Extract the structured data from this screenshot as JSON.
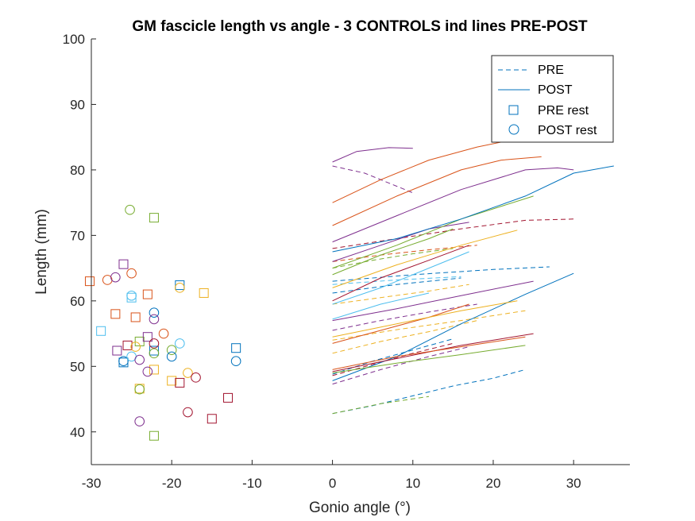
{
  "chart_data": {
    "type": "scatter",
    "title": "GM fascicle length vs angle - 3 CONTROLS ind lines PRE-POST",
    "xlabel": "Gonio angle (°)",
    "ylabel": "Length (mm)",
    "xlim": [
      -30,
      37
    ],
    "ylim": [
      35,
      100
    ],
    "xticks": [
      -30,
      -20,
      -10,
      0,
      10,
      20,
      30
    ],
    "yticks": [
      40,
      50,
      60,
      70,
      80,
      90,
      100
    ],
    "xtick_labels": [
      "-30",
      "-20",
      "-10",
      "0",
      "10",
      "20",
      "30"
    ],
    "ytick_labels": [
      "40",
      "50",
      "60",
      "70",
      "80",
      "90",
      "100"
    ],
    "grid": false,
    "legend_position": "top-right",
    "legend": [
      {
        "label": "PRE",
        "style": "dashed-line"
      },
      {
        "label": "POST",
        "style": "solid-line"
      },
      {
        "label": "PRE rest",
        "style": "square-marker"
      },
      {
        "label": "POST rest",
        "style": "circle-marker"
      }
    ],
    "colors": {
      "blue": "#0072BD",
      "orange": "#D95319",
      "yellow": "#EDB120",
      "purple": "#7E2F8E",
      "green": "#77AC30",
      "cyan": "#4DBEEE",
      "maroon": "#A2142F",
      "legend_marker": "#0072BD"
    },
    "series": [
      {
        "type": "pre",
        "color": "blue",
        "x": [
          0,
          5,
          10,
          15,
          20,
          24
        ],
        "y": [
          42.8,
          44,
          45.5,
          47,
          48.2,
          49.5
        ]
      },
      {
        "type": "pre",
        "color": "green",
        "x": [
          0,
          6,
          12
        ],
        "y": [
          42.8,
          44.3,
          45.4
        ]
      },
      {
        "type": "pre",
        "color": "purple",
        "x": [
          0,
          6,
          12,
          17
        ],
        "y": [
          47.3,
          49.5,
          51.5,
          53
        ]
      },
      {
        "type": "pre",
        "color": "maroon",
        "x": [
          0,
          5,
          10,
          15
        ],
        "y": [
          48.6,
          50.3,
          52,
          53.5
        ]
      },
      {
        "type": "pre",
        "color": "blue",
        "x": [
          0,
          5,
          10,
          15
        ],
        "y": [
          48.8,
          50.8,
          52.5,
          54.2
        ]
      },
      {
        "type": "pre",
        "color": "yellow",
        "x": [
          0,
          6,
          12,
          18
        ],
        "y": [
          52,
          53.8,
          55.3,
          57
        ]
      },
      {
        "type": "pre",
        "color": "yellow",
        "x": [
          0,
          8,
          16,
          24
        ],
        "y": [
          54,
          55.6,
          57,
          58.5
        ]
      },
      {
        "type": "pre",
        "color": "purple",
        "x": [
          0,
          6,
          12,
          18
        ],
        "y": [
          55.5,
          57,
          58.3,
          59.5
        ]
      },
      {
        "type": "pre",
        "color": "yellow",
        "x": [
          0,
          6,
          12,
          17
        ],
        "y": [
          59.5,
          60.5,
          61.5,
          62.5
        ]
      },
      {
        "type": "pre",
        "color": "blue",
        "x": [
          0,
          8,
          16
        ],
        "y": [
          61.2,
          62.5,
          63.5
        ]
      },
      {
        "type": "pre",
        "color": "cyan",
        "x": [
          0,
          8,
          16
        ],
        "y": [
          62.5,
          63.2,
          63.7
        ]
      },
      {
        "type": "pre",
        "color": "blue",
        "x": [
          0,
          10,
          20,
          27
        ],
        "y": [
          63,
          64,
          64.8,
          65.2
        ]
      },
      {
        "type": "pre",
        "color": "green",
        "x": [
          0,
          5,
          10,
          15
        ],
        "y": [
          65,
          66.2,
          67.2,
          68
        ]
      },
      {
        "type": "pre",
        "color": "orange",
        "x": [
          0,
          6,
          12,
          18
        ],
        "y": [
          66,
          67,
          67.8,
          68.5
        ]
      },
      {
        "type": "pre",
        "color": "maroon",
        "x": [
          0,
          8,
          16,
          24,
          30
        ],
        "y": [
          68,
          69.5,
          71,
          72.3,
          72.5
        ]
      },
      {
        "type": "pre",
        "color": "purple",
        "x": [
          0,
          4,
          8,
          10
        ],
        "y": [
          80.6,
          79.5,
          77.5,
          76.5
        ]
      },
      {
        "type": "post",
        "color": "blue",
        "x": [
          0,
          8,
          16,
          24,
          30
        ],
        "y": [
          47.8,
          51.5,
          56.5,
          61,
          64.2
        ]
      },
      {
        "type": "post",
        "color": "green",
        "x": [
          0,
          8,
          16,
          24
        ],
        "y": [
          49,
          50.5,
          51.8,
          53.2
        ]
      },
      {
        "type": "post",
        "color": "maroon",
        "x": [
          0,
          8,
          16,
          25
        ],
        "y": [
          49.2,
          51.2,
          53.2,
          55
        ]
      },
      {
        "type": "post",
        "color": "orange",
        "x": [
          0,
          8,
          16,
          24
        ],
        "y": [
          49.5,
          51.5,
          53,
          54.5
        ]
      },
      {
        "type": "post",
        "color": "orange",
        "x": [
          0,
          6,
          12,
          17
        ],
        "y": [
          53.5,
          55.5,
          57.5,
          59.5
        ]
      },
      {
        "type": "post",
        "color": "yellow",
        "x": [
          0,
          8,
          16,
          23
        ],
        "y": [
          54.5,
          56.5,
          58.5,
          60
        ]
      },
      {
        "type": "post",
        "color": "purple",
        "x": [
          0,
          8,
          16,
          25
        ],
        "y": [
          57,
          58.8,
          60.8,
          63
        ]
      },
      {
        "type": "post",
        "color": "cyan",
        "x": [
          0,
          6,
          12
        ],
        "y": [
          57.2,
          59.5,
          61.2
        ]
      },
      {
        "type": "post",
        "color": "cyan",
        "x": [
          0,
          6,
          12,
          17
        ],
        "y": [
          59.5,
          62,
          65,
          67.5
        ]
      },
      {
        "type": "post",
        "color": "maroon",
        "x": [
          0,
          6,
          12,
          17
        ],
        "y": [
          60,
          63.5,
          66.2,
          68.5
        ]
      },
      {
        "type": "post",
        "color": "yellow",
        "x": [
          0,
          8,
          16,
          23
        ],
        "y": [
          62,
          65.5,
          68.5,
          70.8
        ]
      },
      {
        "type": "post",
        "color": "green",
        "x": [
          0,
          6,
          12,
          15
        ],
        "y": [
          64,
          67,
          69.5,
          71
        ]
      },
      {
        "type": "post",
        "color": "purple",
        "x": [
          0,
          6,
          12,
          17
        ],
        "y": [
          66,
          68.5,
          71,
          72
        ]
      },
      {
        "type": "post",
        "color": "green",
        "x": [
          0,
          8,
          16,
          25
        ],
        "y": [
          65,
          68.5,
          72.5,
          76
        ]
      },
      {
        "type": "post",
        "color": "blue",
        "x": [
          0,
          8,
          16,
          24,
          30,
          35
        ],
        "y": [
          67.5,
          69.5,
          72.5,
          76,
          79.5,
          80.6
        ]
      },
      {
        "type": "post",
        "color": "purple",
        "x": [
          0,
          8,
          16,
          24,
          28,
          30
        ],
        "y": [
          69,
          73,
          77,
          80,
          80.3,
          80
        ]
      },
      {
        "type": "post",
        "color": "orange",
        "x": [
          0,
          8,
          16,
          21,
          26
        ],
        "y": [
          71.5,
          76,
          80,
          81.5,
          82
        ]
      },
      {
        "type": "post",
        "color": "orange",
        "x": [
          0,
          6,
          12,
          18,
          22
        ],
        "y": [
          75,
          78.5,
          81.5,
          83.5,
          84.5
        ]
      },
      {
        "type": "post",
        "color": "purple",
        "x": [
          0,
          3,
          7,
          10
        ],
        "y": [
          81.2,
          82.8,
          83.4,
          83.3
        ]
      }
    ],
    "pre_rest": [
      {
        "x": -30.2,
        "y": 63,
        "color": "orange"
      },
      {
        "x": -28.8,
        "y": 55.4,
        "color": "cyan"
      },
      {
        "x": -27,
        "y": 58,
        "color": "orange"
      },
      {
        "x": -26.8,
        "y": 52.4,
        "color": "purple"
      },
      {
        "x": -26,
        "y": 50.6,
        "color": "blue"
      },
      {
        "x": -26,
        "y": 65.6,
        "color": "purple"
      },
      {
        "x": -25.5,
        "y": 53.2,
        "color": "maroon"
      },
      {
        "x": -25,
        "y": 60.5,
        "color": "cyan"
      },
      {
        "x": -24.5,
        "y": 57.5,
        "color": "orange"
      },
      {
        "x": -24,
        "y": 53.8,
        "color": "green"
      },
      {
        "x": -24,
        "y": 46.6,
        "color": "yellow"
      },
      {
        "x": -23,
        "y": 54.5,
        "color": "purple"
      },
      {
        "x": -23,
        "y": 61,
        "color": "orange"
      },
      {
        "x": -22.2,
        "y": 52.4,
        "color": "blue"
      },
      {
        "x": -22.2,
        "y": 72.7,
        "color": "green"
      },
      {
        "x": -22.2,
        "y": 49.5,
        "color": "yellow"
      },
      {
        "x": -22.2,
        "y": 39.4,
        "color": "green"
      },
      {
        "x": -20,
        "y": 47.8,
        "color": "yellow"
      },
      {
        "x": -19,
        "y": 62.4,
        "color": "blue"
      },
      {
        "x": -19,
        "y": 47.5,
        "color": "maroon"
      },
      {
        "x": -16,
        "y": 61.2,
        "color": "yellow"
      },
      {
        "x": -15,
        "y": 42,
        "color": "maroon"
      },
      {
        "x": -13,
        "y": 45.2,
        "color": "maroon"
      },
      {
        "x": -12,
        "y": 52.8,
        "color": "blue"
      }
    ],
    "post_rest": [
      {
        "x": -28,
        "y": 63.2,
        "color": "orange"
      },
      {
        "x": -27,
        "y": 63.6,
        "color": "purple"
      },
      {
        "x": -26,
        "y": 50.8,
        "color": "blue"
      },
      {
        "x": -25.2,
        "y": 73.9,
        "color": "green"
      },
      {
        "x": -25,
        "y": 64.2,
        "color": "orange"
      },
      {
        "x": -25,
        "y": 60.8,
        "color": "cyan"
      },
      {
        "x": -25,
        "y": 51.5,
        "color": "cyan"
      },
      {
        "x": -24.5,
        "y": 53,
        "color": "yellow"
      },
      {
        "x": -24,
        "y": 51,
        "color": "purple"
      },
      {
        "x": -24,
        "y": 46.5,
        "color": "green"
      },
      {
        "x": -24,
        "y": 41.6,
        "color": "purple"
      },
      {
        "x": -23,
        "y": 49.2,
        "color": "purple"
      },
      {
        "x": -22.2,
        "y": 58.2,
        "color": "blue"
      },
      {
        "x": -22.2,
        "y": 57.2,
        "color": "purple"
      },
      {
        "x": -22.2,
        "y": 53.5,
        "color": "maroon"
      },
      {
        "x": -22.2,
        "y": 52,
        "color": "green"
      },
      {
        "x": -21,
        "y": 55,
        "color": "orange"
      },
      {
        "x": -20,
        "y": 52.5,
        "color": "green"
      },
      {
        "x": -20,
        "y": 51.5,
        "color": "blue"
      },
      {
        "x": -19,
        "y": 62,
        "color": "yellow"
      },
      {
        "x": -19,
        "y": 53.5,
        "color": "cyan"
      },
      {
        "x": -18,
        "y": 49,
        "color": "yellow"
      },
      {
        "x": -18,
        "y": 43,
        "color": "maroon"
      },
      {
        "x": -17,
        "y": 48.3,
        "color": "maroon"
      },
      {
        "x": -12,
        "y": 50.8,
        "color": "blue"
      }
    ]
  }
}
